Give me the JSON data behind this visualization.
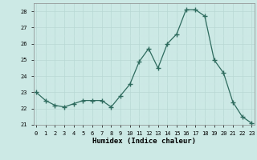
{
  "x": [
    0,
    1,
    2,
    3,
    4,
    5,
    6,
    7,
    8,
    9,
    10,
    11,
    12,
    13,
    14,
    15,
    16,
    17,
    18,
    19,
    20,
    21,
    22,
    23
  ],
  "y": [
    23.0,
    22.5,
    22.2,
    22.1,
    22.3,
    22.5,
    22.5,
    22.5,
    22.1,
    22.8,
    23.5,
    24.9,
    25.7,
    24.5,
    26.0,
    26.6,
    28.1,
    28.1,
    27.7,
    25.0,
    24.2,
    22.4,
    21.5,
    21.1
  ],
  "xlabel": "Humidex (Indice chaleur)",
  "ylim": [
    21,
    28.5
  ],
  "xlim": [
    -0.3,
    23.3
  ],
  "yticks": [
    21,
    22,
    23,
    24,
    25,
    26,
    27,
    28
  ],
  "xticks": [
    0,
    1,
    2,
    3,
    4,
    5,
    6,
    7,
    8,
    9,
    10,
    11,
    12,
    13,
    14,
    15,
    16,
    17,
    18,
    19,
    20,
    21,
    22,
    23
  ],
  "line_color": "#2e6b5e",
  "marker_color": "#2e6b5e",
  "bg_color": "#cce9e5",
  "grid_major_color": "#b8d8d4",
  "grid_minor_color": "#d0e8e5"
}
